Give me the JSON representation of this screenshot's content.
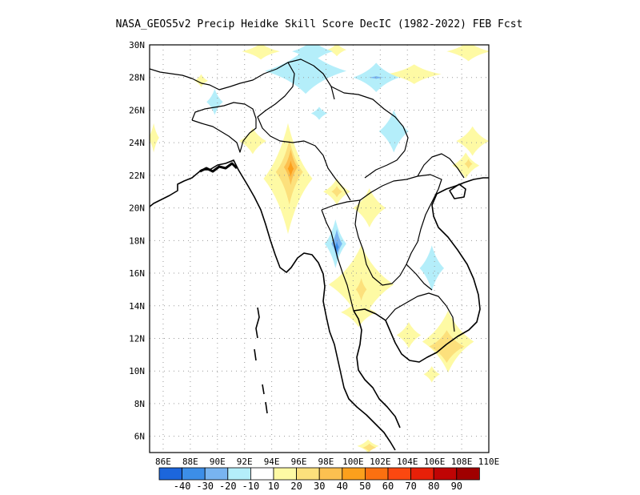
{
  "map": {
    "title": "NASA_GEOS5v2 Precip Heidke Skill Score DecIC (1982-2022) FEB Fcst",
    "lon_min": 85,
    "lon_max": 110,
    "lat_min": 5,
    "lat_max": 30,
    "lon_labels": [
      "86E",
      "88E",
      "90E",
      "92E",
      "94E",
      "96E",
      "98E",
      "100E",
      "102E",
      "104E",
      "106E",
      "108E",
      "110E"
    ],
    "lat_labels": [
      "6N",
      "8N",
      "10N",
      "12N",
      "14N",
      "16N",
      "18N",
      "20N",
      "22N",
      "24N",
      "26N",
      "28N",
      "30N"
    ],
    "colors": {
      "n40": "#1c66dc",
      "n30": "#3c8ee8",
      "n20": "#78b4f0",
      "n10": "#b4eefa",
      "zero": "#ffffff",
      "p10": "#fefaa4",
      "p20": "#fce07c",
      "p30": "#fcc050",
      "p40": "#fca01c",
      "p50": "#fc7010",
      "p60": "#fc4810",
      "p70": "#e82008",
      "p80": "#c00404",
      "p90": "#a00000"
    },
    "contours": [
      {
        "level": "p10",
        "lon": 95.2,
        "lat": 21.8,
        "rx": 1.8,
        "ry": 3.4
      },
      {
        "level": "p20",
        "lon": 95.3,
        "lat": 22.2,
        "rx": 1.0,
        "ry": 2.0
      },
      {
        "level": "p30",
        "lon": 95.4,
        "lat": 22.5,
        "rx": 0.5,
        "ry": 1.1
      },
      {
        "level": "p40",
        "lon": 95.4,
        "lat": 22.4,
        "rx": 0.22,
        "ry": 0.5
      },
      {
        "level": "p10",
        "lon": 92.6,
        "lat": 24.1,
        "rx": 1.0,
        "ry": 0.8
      },
      {
        "level": "p10",
        "lon": 98.8,
        "lat": 21.0,
        "rx": 1.0,
        "ry": 0.8
      },
      {
        "level": "p20",
        "lon": 98.8,
        "lat": 21.0,
        "rx": 0.4,
        "ry": 0.35
      },
      {
        "level": "p10",
        "lon": 101.2,
        "lat": 20.0,
        "rx": 1.2,
        "ry": 1.2
      },
      {
        "level": "p10",
        "lon": 100.6,
        "lat": 15.3,
        "rx": 2.4,
        "ry": 2.4
      },
      {
        "level": "p20",
        "lon": 100.6,
        "lat": 15.0,
        "rx": 0.4,
        "ry": 0.7
      },
      {
        "level": "p10",
        "lon": 100.4,
        "lat": 13.6,
        "rx": 1.3,
        "ry": 0.9
      },
      {
        "level": "p10",
        "lon": 107.0,
        "lat": 11.8,
        "rx": 1.9,
        "ry": 1.9
      },
      {
        "level": "p20",
        "lon": 106.9,
        "lat": 11.5,
        "rx": 1.3,
        "ry": 1.0
      },
      {
        "level": "p10",
        "lon": 104.1,
        "lat": 12.2,
        "rx": 0.9,
        "ry": 0.8
      },
      {
        "level": "p10",
        "lon": 105.8,
        "lat": 9.8,
        "rx": 0.6,
        "ry": 0.5
      },
      {
        "level": "p10",
        "lon": 104.5,
        "lat": 28.2,
        "rx": 2.0,
        "ry": 0.6
      },
      {
        "level": "p10",
        "lon": 108.8,
        "lat": 24.1,
        "rx": 1.2,
        "ry": 0.9
      },
      {
        "level": "p10",
        "lon": 108.3,
        "lat": 22.6,
        "rx": 1.0,
        "ry": 0.8
      },
      {
        "level": "p20",
        "lon": 108.5,
        "lat": 22.7,
        "rx": 0.3,
        "ry": 0.3
      },
      {
        "level": "p10",
        "lon": 108.5,
        "lat": 29.6,
        "rx": 1.6,
        "ry": 0.6
      },
      {
        "level": "p10",
        "lon": 93.2,
        "lat": 29.6,
        "rx": 1.4,
        "ry": 0.5
      },
      {
        "level": "p10",
        "lon": 98.8,
        "lat": 29.7,
        "rx": 0.7,
        "ry": 0.4
      },
      {
        "level": "p10",
        "lon": 85.3,
        "lat": 24.3,
        "rx": 0.4,
        "ry": 0.9
      },
      {
        "level": "p10",
        "lon": 88.8,
        "lat": 27.8,
        "rx": 0.5,
        "ry": 0.4
      },
      {
        "level": "p10",
        "lon": 101.1,
        "lat": 5.4,
        "rx": 0.8,
        "ry": 0.4
      },
      {
        "level": "p20",
        "lon": 101.2,
        "lat": 5.3,
        "rx": 0.5,
        "ry": 0.25
      },
      {
        "level": "n10",
        "lon": 96.5,
        "lat": 28.4,
        "rx": 3.0,
        "ry": 1.4
      },
      {
        "level": "n10",
        "lon": 97.0,
        "lat": 29.6,
        "rx": 1.5,
        "ry": 0.7
      },
      {
        "level": "n10",
        "lon": 101.7,
        "lat": 28.0,
        "rx": 1.7,
        "ry": 0.9
      },
      {
        "level": "n20",
        "lon": 101.7,
        "lat": 28.0,
        "rx": 0.6,
        "ry": 0.08
      },
      {
        "level": "n10",
        "lon": 103.0,
        "lat": 24.7,
        "rx": 1.1,
        "ry": 1.3
      },
      {
        "level": "n10",
        "lon": 97.5,
        "lat": 25.8,
        "rx": 0.6,
        "ry": 0.4
      },
      {
        "level": "n10",
        "lon": 98.7,
        "lat": 17.8,
        "rx": 0.8,
        "ry": 1.5
      },
      {
        "level": "n20",
        "lon": 98.8,
        "lat": 17.8,
        "rx": 0.4,
        "ry": 0.9
      },
      {
        "level": "n30",
        "lon": 98.8,
        "lat": 17.6,
        "rx": 0.15,
        "ry": 0.35
      },
      {
        "level": "n10",
        "lon": 105.8,
        "lat": 16.3,
        "rx": 0.9,
        "ry": 1.4
      },
      {
        "level": "n10",
        "lon": 89.8,
        "lat": 26.5,
        "rx": 0.6,
        "ry": 0.8
      }
    ],
    "colorbar": {
      "labels": [
        "-40",
        "-30",
        "-20",
        "-10",
        "10",
        "20",
        "30",
        "40",
        "50",
        "60",
        "70",
        "80",
        "90"
      ],
      "levels": [
        "n40",
        "n30",
        "n20",
        "n10",
        "zero",
        "p10",
        "p20",
        "p30",
        "p40",
        "p50",
        "p60",
        "p70",
        "p80",
        "p90"
      ]
    }
  }
}
